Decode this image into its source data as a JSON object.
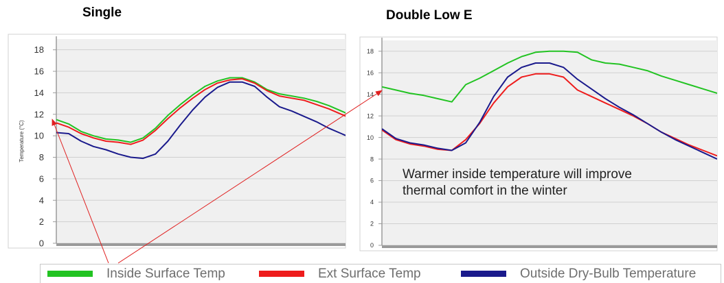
{
  "chart_data": [
    {
      "type": "line",
      "title": "Single",
      "ylabel": "Temperature (°C)",
      "ylim": [
        0,
        19
      ],
      "yticks": [
        "0",
        "2",
        "4",
        "6",
        "8",
        "10",
        "12",
        "14",
        "16",
        "18"
      ],
      "grid": true,
      "x": [
        0,
        0.5,
        1,
        1.5,
        2,
        2.5,
        3,
        3.5,
        4,
        4.5,
        5,
        5.5,
        6,
        6.5,
        7,
        7.5,
        8,
        8.5,
        9,
        9.5,
        10,
        10.5,
        11,
        11.5,
        12
      ],
      "series": [
        {
          "name": "Inside Surface Temp",
          "color": "#22c322",
          "values": [
            11.5,
            11.1,
            10.4,
            10.0,
            9.7,
            9.6,
            9.4,
            9.8,
            10.7,
            11.9,
            12.9,
            13.8,
            14.6,
            15.1,
            15.4,
            15.4,
            15.0,
            14.3,
            13.9,
            13.7,
            13.5,
            13.2,
            12.8,
            12.3,
            11.8
          ]
        },
        {
          "name": "Ext Surface Temp",
          "color": "#ee1c1c",
          "values": [
            11.2,
            10.8,
            10.2,
            9.8,
            9.5,
            9.4,
            9.2,
            9.6,
            10.5,
            11.6,
            12.6,
            13.5,
            14.3,
            14.9,
            15.2,
            15.3,
            14.9,
            14.2,
            13.7,
            13.5,
            13.3,
            12.9,
            12.5,
            12.0,
            11.5
          ]
        },
        {
          "name": "Outside Dry-Bulb Temperature",
          "color": "#1a1a8c",
          "values": [
            10.3,
            10.2,
            9.5,
            9.0,
            8.7,
            8.3,
            8.0,
            7.9,
            8.3,
            9.5,
            11.0,
            12.4,
            13.6,
            14.5,
            15.0,
            15.0,
            14.6,
            13.6,
            12.7,
            12.3,
            11.8,
            11.3,
            10.7,
            10.2,
            9.7
          ]
        }
      ]
    },
    {
      "type": "line",
      "title": "Double Low E",
      "ylabel": "",
      "ylim": [
        0,
        19
      ],
      "yticks": [
        "0",
        "2",
        "4",
        "6",
        "8",
        "10",
        "12",
        "14",
        "16",
        "18"
      ],
      "grid": true,
      "x": [
        0,
        0.5,
        1,
        1.5,
        2,
        2.5,
        3,
        3.5,
        4,
        4.5,
        5,
        5.5,
        6,
        6.5,
        7,
        7.5,
        8,
        8.5,
        9,
        9.5,
        10,
        10.5,
        11,
        11.5,
        12
      ],
      "series": [
        {
          "name": "Inside Surface Temp",
          "color": "#22c322",
          "values": [
            14.7,
            14.4,
            14.1,
            13.9,
            13.6,
            13.3,
            14.9,
            15.5,
            16.2,
            16.9,
            17.5,
            17.9,
            18.0,
            18.0,
            17.9,
            17.2,
            16.9,
            16.8,
            16.5,
            16.2,
            15.7,
            15.3,
            14.9,
            14.5,
            14.1
          ]
        },
        {
          "name": "Ext Surface Temp",
          "color": "#ee1c1c",
          "values": [
            10.7,
            9.8,
            9.4,
            9.2,
            8.9,
            8.8,
            9.8,
            11.3,
            13.2,
            14.7,
            15.6,
            15.9,
            15.9,
            15.6,
            14.4,
            13.8,
            13.2,
            12.6,
            12.0,
            11.3,
            10.5,
            9.9,
            9.3,
            8.8,
            8.3
          ]
        },
        {
          "name": "Outside Dry-Bulb Temperature",
          "color": "#1a1a8c",
          "values": [
            10.8,
            9.9,
            9.5,
            9.3,
            9.0,
            8.8,
            9.5,
            11.4,
            13.8,
            15.6,
            16.5,
            16.9,
            16.9,
            16.5,
            15.4,
            14.5,
            13.6,
            12.8,
            12.1,
            11.3,
            10.5,
            9.8,
            9.2,
            8.6,
            8.0
          ]
        }
      ]
    }
  ],
  "annotation": {
    "line1": "Warmer inside temperature will improve",
    "line2": "thermal comfort in the winter"
  },
  "legend": [
    {
      "label": "Inside Surface Temp",
      "color": "#22c322"
    },
    {
      "label": "Ext Surface Temp",
      "color": "#ee1c1c"
    },
    {
      "label": "Outside Dry-Bulb Temperature",
      "color": "#1a1a8c"
    }
  ],
  "colors": {
    "arrow": "#e02020",
    "plot_background": "#f0f0f0",
    "grid": "#cfcfcf",
    "axis": "#9a9a9a"
  }
}
